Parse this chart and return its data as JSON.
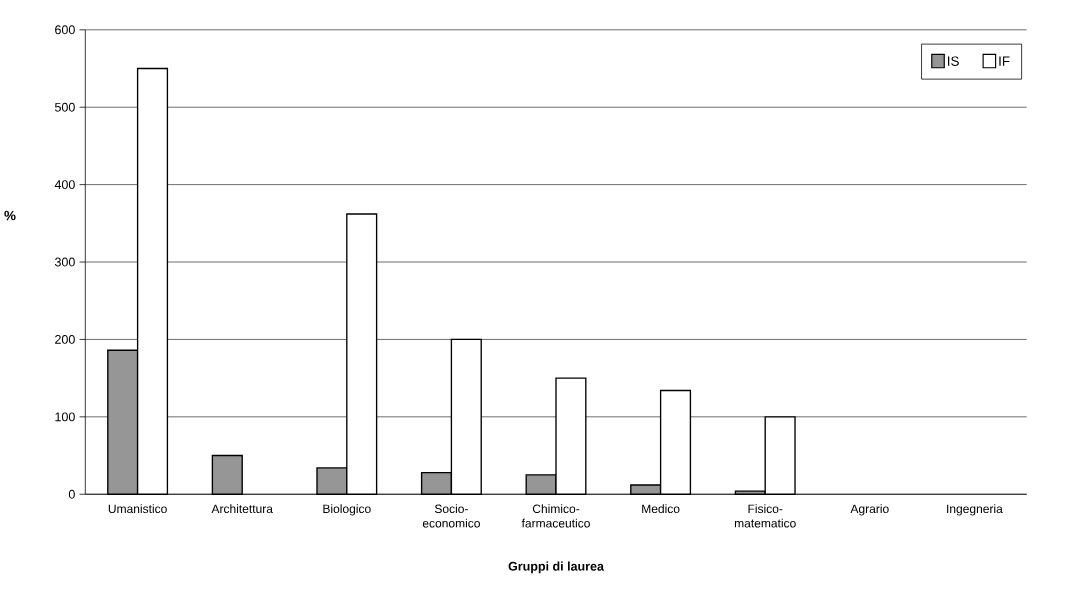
{
  "chart_data": {
    "type": "bar",
    "xlabel": "Gruppi di laurea",
    "ylabel": "%",
    "categories": [
      "Umanistico",
      "Architettura",
      "Biologico",
      "Socio-economico",
      "Chimico-farmaceutico",
      "Medico",
      "Fisico-matematico",
      "Agrario",
      "Ingegneria"
    ],
    "series": [
      {
        "name": "IS",
        "color": "#969696",
        "values": [
          186,
          50,
          34,
          28,
          25,
          12,
          4,
          null,
          null
        ]
      },
      {
        "name": "IF",
        "color": "#ffffff",
        "values": [
          550,
          null,
          362,
          200,
          150,
          134,
          100,
          null,
          null
        ]
      }
    ],
    "ylim": [
      0,
      600
    ],
    "yticks": [
      0,
      100,
      200,
      300,
      400,
      500,
      600
    ],
    "grid": "y",
    "legend": "top right"
  }
}
